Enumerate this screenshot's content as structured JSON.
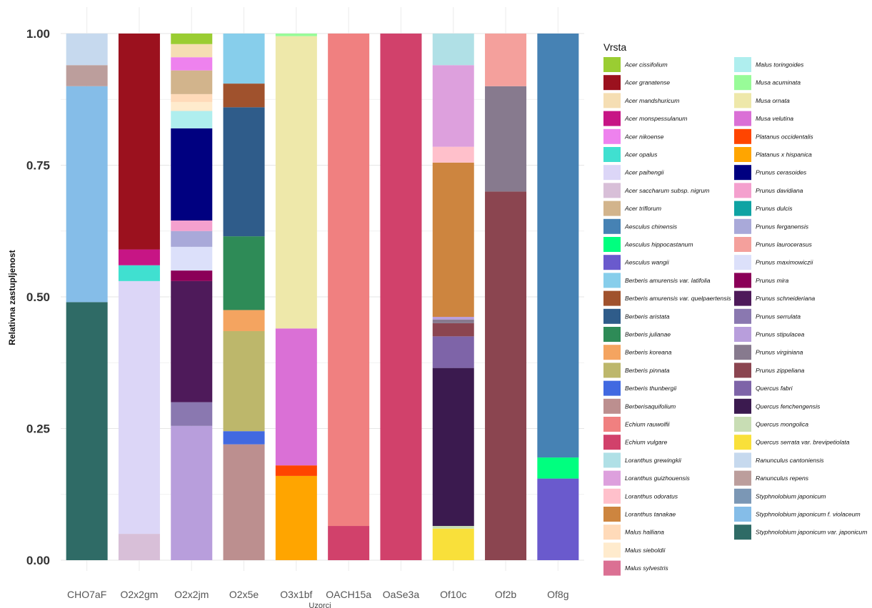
{
  "chart_data": {
    "type": "bar",
    "stacked": true,
    "xlabel": "Uzorci",
    "ylabel": "Relativna zastupljenost",
    "ylim": [
      0,
      1
    ],
    "yticks": [
      "0.00",
      "0.25",
      "0.50",
      "0.75",
      "1.00"
    ],
    "ytick_values": [
      0,
      0.25,
      0.5,
      0.75,
      1
    ],
    "grid": true,
    "legend_title": "Vrsta",
    "legend_position": "right",
    "categories": [
      "CHO7aF",
      "O2x2gm",
      "O2x2jm",
      "O2x5e",
      "O3x1bf",
      "OACH15a",
      "OaSe3a",
      "Of10c",
      "Of2b",
      "Of8g"
    ],
    "species": [
      {
        "name": "Acer cissifolium",
        "color": "#9ACD32"
      },
      {
        "name": "Acer granatense",
        "color": "#9B111E"
      },
      {
        "name": "Acer mandshuricum",
        "color": "#F5DEB3"
      },
      {
        "name": "Acer monspessulanum",
        "color": "#C71585"
      },
      {
        "name": "Acer nikoense",
        "color": "#EE82EE"
      },
      {
        "name": "Acer opalus",
        "color": "#40E0D0"
      },
      {
        "name": "Acer paihengii",
        "color": "#DCD6F7"
      },
      {
        "name": "Acer saccharum subsp. nigrum",
        "color": "#D8BFD8"
      },
      {
        "name": "Acer triflorum",
        "color": "#D2B48C"
      },
      {
        "name": "Aesculus chinensis",
        "color": "#4682B4"
      },
      {
        "name": "Aesculus hippocastanum",
        "color": "#00FF7F"
      },
      {
        "name": "Aesculus wangii",
        "color": "#6A5ACD"
      },
      {
        "name": "Berberis amurensis var. latifolia",
        "color": "#87CEEB"
      },
      {
        "name": "Berberis amurensis var. quelpaertensis",
        "color": "#A0522D"
      },
      {
        "name": "Berberis aristata",
        "color": "#2F5C8A"
      },
      {
        "name": "Berberis julianae",
        "color": "#2E8B57"
      },
      {
        "name": "Berberis koreana",
        "color": "#F4A460"
      },
      {
        "name": "Berberis pinnata",
        "color": "#BDB76B"
      },
      {
        "name": "Berberis thunbergii",
        "color": "#4169E1"
      },
      {
        "name": "Berberisaquifolium",
        "color": "#BC8F8F"
      },
      {
        "name": "Echium rauwolfii",
        "color": "#F08080"
      },
      {
        "name": "Echium vulgare",
        "color": "#D1416B"
      },
      {
        "name": "Loranthus grewingkii",
        "color": "#B0E0E6"
      },
      {
        "name": "Loranthus guizhouensis",
        "color": "#DDA0DD"
      },
      {
        "name": "Loranthus odoratus",
        "color": "#FFC0CB"
      },
      {
        "name": "Loranthus tanakae",
        "color": "#CD853F"
      },
      {
        "name": "Malus halliana",
        "color": "#FFDAB9"
      },
      {
        "name": "Malus sieboldii",
        "color": "#FFEBCD"
      },
      {
        "name": "Malus sylvestris",
        "color": "#DB7093"
      },
      {
        "name": "Malus toringoides",
        "color": "#AFEEEE"
      },
      {
        "name": "Musa acuminata",
        "color": "#98FB98"
      },
      {
        "name": "Musa ornata",
        "color": "#EEE8AA"
      },
      {
        "name": "Musa velutina",
        "color": "#DA70D6"
      },
      {
        "name": "Platanus occidentalis",
        "color": "#FF4500"
      },
      {
        "name": "Platanus x hispanica",
        "color": "#FFA500"
      },
      {
        "name": "Prunus cerasoides",
        "color": "#000080"
      },
      {
        "name": "Prunus davidiana",
        "color": "#F4A0CE"
      },
      {
        "name": "Prunus dulcis",
        "color": "#0FA3A3"
      },
      {
        "name": "Prunus ferganensis",
        "color": "#A9A9D9"
      },
      {
        "name": "Prunus laurocerasus",
        "color": "#F4A09C"
      },
      {
        "name": "Prunus maximowiczii",
        "color": "#DCE0FA"
      },
      {
        "name": "Prunus mira",
        "color": "#8B0058"
      },
      {
        "name": "Prunus schneideriana",
        "color": "#4E1A5A"
      },
      {
        "name": "Prunus serrulata",
        "color": "#8A78B0"
      },
      {
        "name": "Prunus stipulacea",
        "color": "#B89EDC"
      },
      {
        "name": "Prunus virginiana",
        "color": "#877A8E"
      },
      {
        "name": "Prunus zippeliana",
        "color": "#8B4550"
      },
      {
        "name": "Quercus fabri",
        "color": "#7E64A8"
      },
      {
        "name": "Quercus fenchengensis",
        "color": "#3B1A4F"
      },
      {
        "name": "Quercus mongolica",
        "color": "#C8DDB4"
      },
      {
        "name": "Quercus serrata var. brevipetiolata",
        "color": "#F9E03A"
      },
      {
        "name": "Ranunculus cantoniensis",
        "color": "#C6D9EE"
      },
      {
        "name": "Ranunculus repens",
        "color": "#BC9E9C"
      },
      {
        "name": "Styphnolobium japonicum",
        "color": "#7B97B5"
      },
      {
        "name": "Styphnolobium japonicum f. violaceum",
        "color": "#85BDE8"
      },
      {
        "name": "Styphnolobium japonicum var. japonicum",
        "color": "#2F6B66"
      }
    ],
    "series_stacks": [
      {
        "sample": "CHO7aF",
        "segments": [
          {
            "species": "Styphnolobium japonicum var. japonicum",
            "value": 0.49
          },
          {
            "species": "Styphnolobium japonicum f. violaceum",
            "value": 0.41
          },
          {
            "species": "Ranunculus repens",
            "value": 0.04
          },
          {
            "species": "Ranunculus cantoniensis",
            "value": 0.06
          }
        ]
      },
      {
        "sample": "O2x2gm",
        "segments": [
          {
            "species": "Acer saccharum subsp. nigrum",
            "value": 0.05
          },
          {
            "species": "Acer paihengii",
            "value": 0.48
          },
          {
            "species": "Acer opalus",
            "value": 0.03
          },
          {
            "species": "Acer monspessulanum",
            "value": 0.03
          },
          {
            "species": "Acer granatense",
            "value": 0.41
          }
        ]
      },
      {
        "sample": "O2x2jm",
        "segments": [
          {
            "species": "Prunus stipulacea",
            "value": 0.255
          },
          {
            "species": "Prunus serrulata",
            "value": 0.045
          },
          {
            "species": "Prunus schneideriana",
            "value": 0.23
          },
          {
            "species": "Prunus mira",
            "value": 0.02
          },
          {
            "species": "Prunus maximowiczii",
            "value": 0.045
          },
          {
            "species": "Prunus ferganensis",
            "value": 0.03
          },
          {
            "species": "Prunus davidiana",
            "value": 0.02
          },
          {
            "species": "Prunus cerasoides",
            "value": 0.175
          },
          {
            "species": "Malus toringoides",
            "value": 0.033
          },
          {
            "species": "Malus sieboldii",
            "value": 0.017
          },
          {
            "species": "Malus halliana",
            "value": 0.015
          },
          {
            "species": "Acer triflorum",
            "value": 0.045
          },
          {
            "species": "Acer nikoense",
            "value": 0.025
          },
          {
            "species": "Acer mandshuricum",
            "value": 0.025
          },
          {
            "species": "Acer cissifolium",
            "value": 0.02
          }
        ]
      },
      {
        "sample": "O2x5e",
        "segments": [
          {
            "species": "Berberisaquifolium",
            "value": 0.22
          },
          {
            "species": "Berberis thunbergii",
            "value": 0.025
          },
          {
            "species": "Berberis pinnata",
            "value": 0.19
          },
          {
            "species": "Berberis koreana",
            "value": 0.04
          },
          {
            "species": "Berberis julianae",
            "value": 0.14
          },
          {
            "species": "Berberis aristata",
            "value": 0.245
          },
          {
            "species": "Berberis amurensis var. quelpaertensis",
            "value": 0.045
          },
          {
            "species": "Berberis amurensis var. latifolia",
            "value": 0.095
          }
        ]
      },
      {
        "sample": "O3x1bf",
        "segments": [
          {
            "species": "Platanus x hispanica",
            "value": 0.16
          },
          {
            "species": "Platanus occidentalis",
            "value": 0.02
          },
          {
            "species": "Musa velutina",
            "value": 0.26
          },
          {
            "species": "Musa ornata",
            "value": 0.555
          },
          {
            "species": "Musa acuminata",
            "value": 0.005
          }
        ]
      },
      {
        "sample": "OACH15a",
        "segments": [
          {
            "species": "Echium vulgare",
            "value": 0.065
          },
          {
            "species": "Echium rauwolfii",
            "value": 0.935
          }
        ]
      },
      {
        "sample": "OaSe3a",
        "segments": [
          {
            "species": "Echium vulgare",
            "value": 1.0
          }
        ]
      },
      {
        "sample": "Of10c",
        "segments": [
          {
            "species": "Quercus serrata var. brevipetiolata",
            "value": 0.06
          },
          {
            "species": "Quercus mongolica",
            "value": 0.005
          },
          {
            "species": "Quercus fenchengensis",
            "value": 0.3
          },
          {
            "species": "Quercus fabri",
            "value": 0.06
          },
          {
            "species": "Prunus zippeliana",
            "value": 0.025
          },
          {
            "species": "Prunus virginiana",
            "value": 0.007
          },
          {
            "species": "Prunus stipulacea",
            "value": 0.005
          },
          {
            "species": "Loranthus tanakae",
            "value": 0.293
          },
          {
            "species": "Loranthus odoratus",
            "value": 0.03
          },
          {
            "species": "Loranthus guizhouensis",
            "value": 0.155
          },
          {
            "species": "Loranthus grewingkii",
            "value": 0.06
          }
        ]
      },
      {
        "sample": "Of2b",
        "segments": [
          {
            "species": "Prunus zippeliana",
            "value": 0.7
          },
          {
            "species": "Prunus virginiana",
            "value": 0.2
          },
          {
            "species": "Prunus laurocerasus",
            "value": 0.1
          }
        ]
      },
      {
        "sample": "Of8g",
        "segments": [
          {
            "species": "Aesculus wangii",
            "value": 0.155
          },
          {
            "species": "Aesculus hippocastanum",
            "value": 0.04
          },
          {
            "species": "Aesculus chinensis",
            "value": 0.805
          }
        ]
      }
    ]
  }
}
